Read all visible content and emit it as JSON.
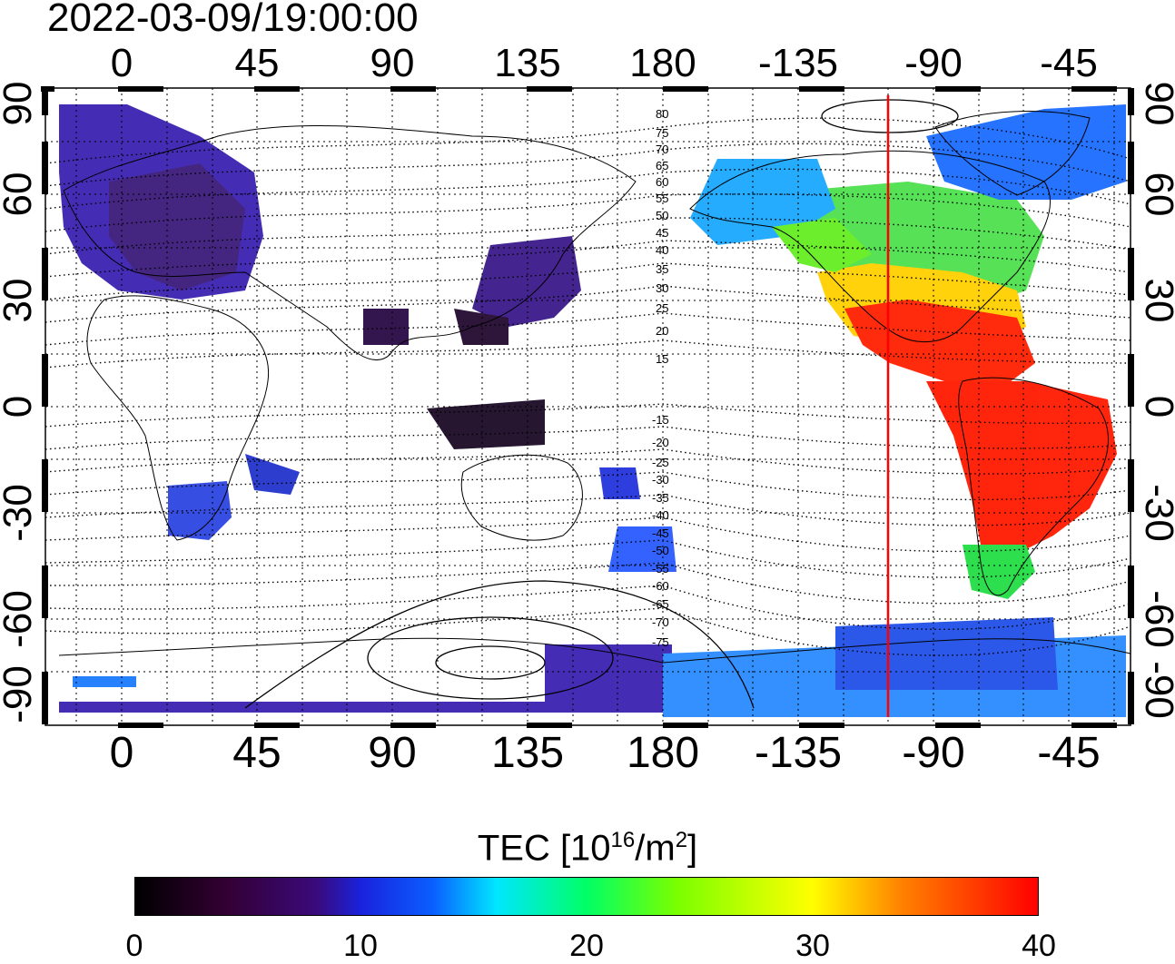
{
  "timestamp": "2022-03-09/19:00:00",
  "map": {
    "type": "global-tec-map",
    "projection": "equirectangular",
    "lon_ticks_top": [
      "0",
      "45",
      "90",
      "135",
      "180",
      "-135",
      "-90",
      "-45"
    ],
    "lon_ticks_bottom": [
      "0",
      "45",
      "90",
      "135",
      "180",
      "-135",
      "-90",
      "-45"
    ],
    "lat_ticks_left": [
      "90",
      "60",
      "30",
      "0",
      "-30",
      "-60",
      "-90"
    ],
    "lat_ticks_right": [
      "90",
      "60",
      "30",
      "0",
      "-30",
      "-60",
      "-90"
    ],
    "lon_range": [
      -20,
      345
    ],
    "lat_range": [
      -90,
      90
    ],
    "grid": "on, dotted, 15 deg",
    "subsolar_meridian_lon": -105,
    "subsolar_meridian_color": "#ff0000",
    "geomag_lat_labels": [
      "80",
      "75",
      "70",
      "65",
      "60",
      "55",
      "50",
      "45",
      "40",
      "35",
      "30",
      "25",
      "20",
      "15",
      "-15",
      "-20",
      "-25",
      "-30",
      "-35",
      "-40",
      "-45",
      "-50",
      "-55",
      "-60",
      "-65",
      "-70",
      "-75"
    ]
  },
  "colorbar": {
    "title_main": "TEC  [10",
    "title_sup1": "16",
    "title_mid": "/m",
    "title_sup2": "2",
    "title_end": "]",
    "min": 0,
    "max": 40,
    "tick_labels": [
      "0",
      "10",
      "20",
      "30",
      "40"
    ],
    "colors": [
      "#000000",
      "#3a0a7a",
      "#0a5fff",
      "#00e6ff",
      "#00ff66",
      "#ffff00",
      "#ff0000"
    ]
  }
}
